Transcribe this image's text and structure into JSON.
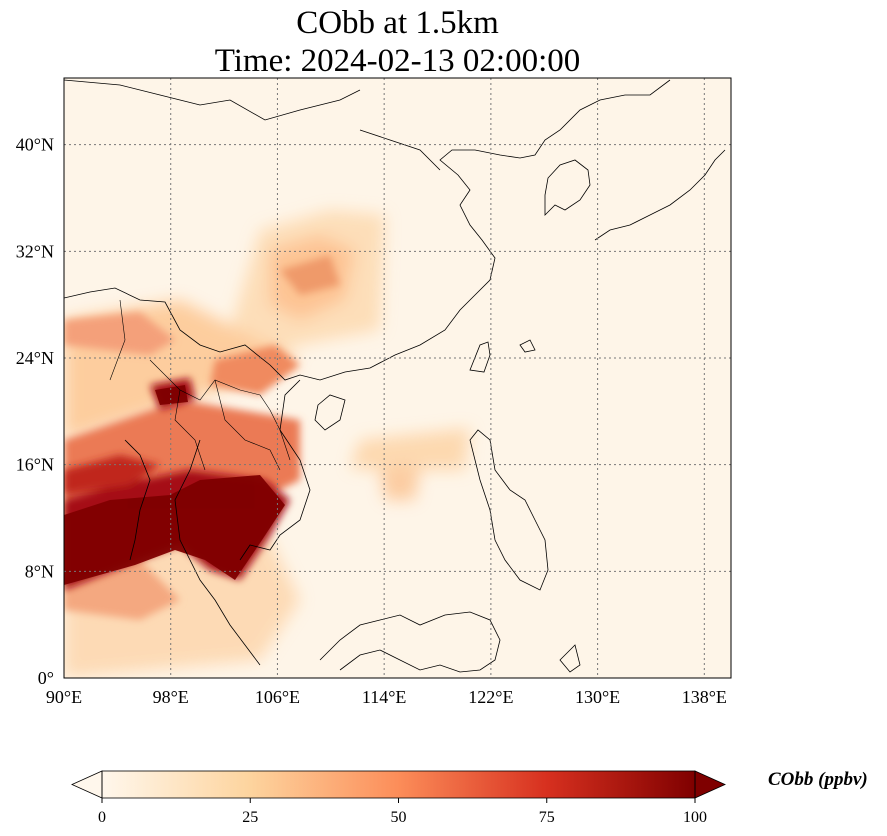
{
  "title": {
    "line1": "CObb at 1.5km",
    "line2": "Time: 2024-02-13 02:00:00"
  },
  "map": {
    "variable": "CObb",
    "level": "1.5km",
    "time": "2024-02-13 02:00:00",
    "extent": {
      "lon": [
        90,
        140
      ],
      "lat": [
        0,
        45
      ]
    },
    "gridlines": true,
    "colormap": "OrRd",
    "lon_ticks": [
      90,
      98,
      106,
      114,
      122,
      130,
      138
    ],
    "lon_tick_labels": [
      "90°E",
      "98°E",
      "106°E",
      "114°E",
      "122°E",
      "130°E",
      "138°E"
    ],
    "lat_ticks": [
      0,
      8,
      16,
      24,
      32,
      40
    ],
    "lat_tick_labels": [
      "0°",
      "8°N",
      "16°N",
      "24°N",
      "32°N",
      "40°N"
    ]
  },
  "colorbar": {
    "label": "CObb (ppbv)",
    "min": 0,
    "max": 100,
    "extend": "both",
    "ticks": [
      0,
      25,
      50,
      75,
      100
    ],
    "tick_labels": [
      "0",
      "25",
      "50",
      "75",
      "100"
    ],
    "colors": [
      "#fff7ec",
      "#fdd49e",
      "#fc8d59",
      "#d7301f",
      "#7f0000"
    ]
  }
}
